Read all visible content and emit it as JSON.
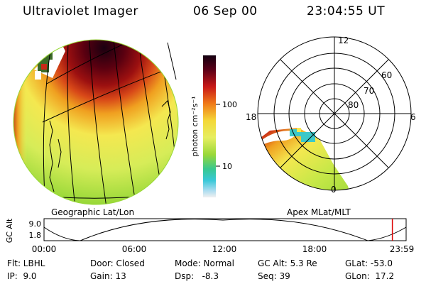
{
  "header": {
    "title": "Ultraviolet Imager",
    "date": "06 Sep 00",
    "time": "23:04:55 UT"
  },
  "colorbar": {
    "unit_label": "photon cm⁻²s⁻¹",
    "tick_high": "100",
    "tick_low": "10"
  },
  "left_panel": {
    "caption": "Geographic Lat/Lon"
  },
  "right_panel": {
    "caption": "Apex MLat/MLT",
    "mlt_labels": {
      "top": "12",
      "left": "18",
      "right": "6",
      "bottom": "0"
    },
    "lat_labels": [
      "60",
      "70",
      "80"
    ]
  },
  "altitude_plot": {
    "ylabel": "GC Alt",
    "yticks": [
      "9.0",
      "1.8"
    ],
    "xticks": [
      "00:00",
      "06:00",
      "12:00",
      "18:00",
      "23:59"
    ],
    "current_time_fraction": 0.962
  },
  "footer": {
    "flt": "Flt: LBHL",
    "ip": "IP:  9.0",
    "door": "Door: Closed",
    "gain": "Gain: 13",
    "mode": "Mode: Normal",
    "dsp": "Dsp:   -8.3",
    "gcalt": "GC Alt: 5.3 Re",
    "seq": "Seq: 39",
    "glat": "GLat: -53.0",
    "glon": "GLon:  17.2"
  },
  "colors": {
    "auroral_peak": "#1a0010",
    "dark_red": "#8a0a0a",
    "orange": "#f0a020",
    "yellow": "#f4e850",
    "green": "#98d838",
    "cyan": "#3cc8c8",
    "marker": "#dd0000"
  }
}
